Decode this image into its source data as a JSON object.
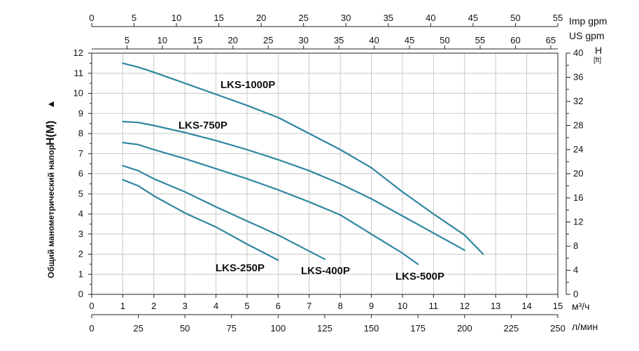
{
  "chart_data": {
    "type": "line",
    "x_unit_label": "м³/ч",
    "x_ticks": [
      0,
      1,
      2,
      3,
      4,
      5,
      6,
      7,
      8,
      9,
      10,
      11,
      12,
      13,
      14,
      15
    ],
    "xlim": [
      0,
      15
    ],
    "ylabel": "Общий манометрический напор",
    "ylabel_symbol": "H(M)",
    "ylabel_arrow": "▲",
    "y_ticks": [
      0,
      1,
      2,
      3,
      4,
      5,
      6,
      7,
      8,
      9,
      10,
      11,
      12
    ],
    "ylim": [
      0,
      12
    ],
    "right_axis": {
      "label": "H",
      "unit": "[ft]",
      "ticks": [
        0,
        4,
        8,
        12,
        16,
        20,
        24,
        28,
        32,
        36,
        40
      ],
      "lim": [
        0,
        40
      ]
    },
    "bottom_axis_2": {
      "label": "л/мин",
      "ticks": [
        0,
        25,
        50,
        75,
        100,
        125,
        150,
        175,
        200,
        225,
        250
      ],
      "lim": [
        0,
        250
      ]
    },
    "top_axis_1": {
      "label": "Imp gpm",
      "ticks": [
        0,
        5,
        10,
        15,
        20,
        25,
        30,
        35,
        40,
        45,
        50,
        55
      ],
      "lim": [
        0,
        55
      ]
    },
    "top_axis_2": {
      "label": "US gpm",
      "ticks": [
        5,
        10,
        15,
        20,
        25,
        30,
        35,
        40,
        45,
        50,
        55,
        60,
        65
      ],
      "lim": [
        0,
        66
      ]
    },
    "grid": true,
    "series": [
      {
        "name": "LKS-1000P",
        "x": [
          1,
          1.5,
          2,
          3,
          4,
          5,
          6,
          7,
          8,
          9,
          10,
          11,
          12,
          12.6
        ],
        "y": [
          11.5,
          11.3,
          11.05,
          10.5,
          9.95,
          9.4,
          8.8,
          8.0,
          7.2,
          6.3,
          5.1,
          4.0,
          2.95,
          2.0
        ]
      },
      {
        "name": "LKS-750P",
        "x": [
          1,
          1.5,
          2,
          3,
          4,
          5,
          6,
          7,
          8,
          9,
          10,
          11,
          12
        ],
        "y": [
          8.6,
          8.55,
          8.4,
          8.05,
          7.65,
          7.2,
          6.7,
          6.15,
          5.5,
          4.75,
          3.9,
          3.05,
          2.2
        ]
      },
      {
        "name": "LKS-500P",
        "x": [
          1,
          1.5,
          2,
          3,
          4,
          5,
          6,
          7,
          8,
          9,
          10,
          10.5
        ],
        "y": [
          7.55,
          7.45,
          7.2,
          6.75,
          6.25,
          5.75,
          5.2,
          4.6,
          3.95,
          3.0,
          2.05,
          1.5
        ]
      },
      {
        "name": "LKS-400P",
        "x": [
          1,
          1.5,
          2,
          3,
          4,
          5,
          6,
          7,
          7.5
        ],
        "y": [
          6.4,
          6.15,
          5.75,
          5.1,
          4.35,
          3.65,
          2.95,
          2.15,
          1.75
        ]
      },
      {
        "name": "LKS-250P",
        "x": [
          1,
          1.5,
          2,
          3,
          4,
          5,
          6
        ],
        "y": [
          5.7,
          5.4,
          4.9,
          4.05,
          3.35,
          2.5,
          1.7
        ]
      }
    ]
  }
}
